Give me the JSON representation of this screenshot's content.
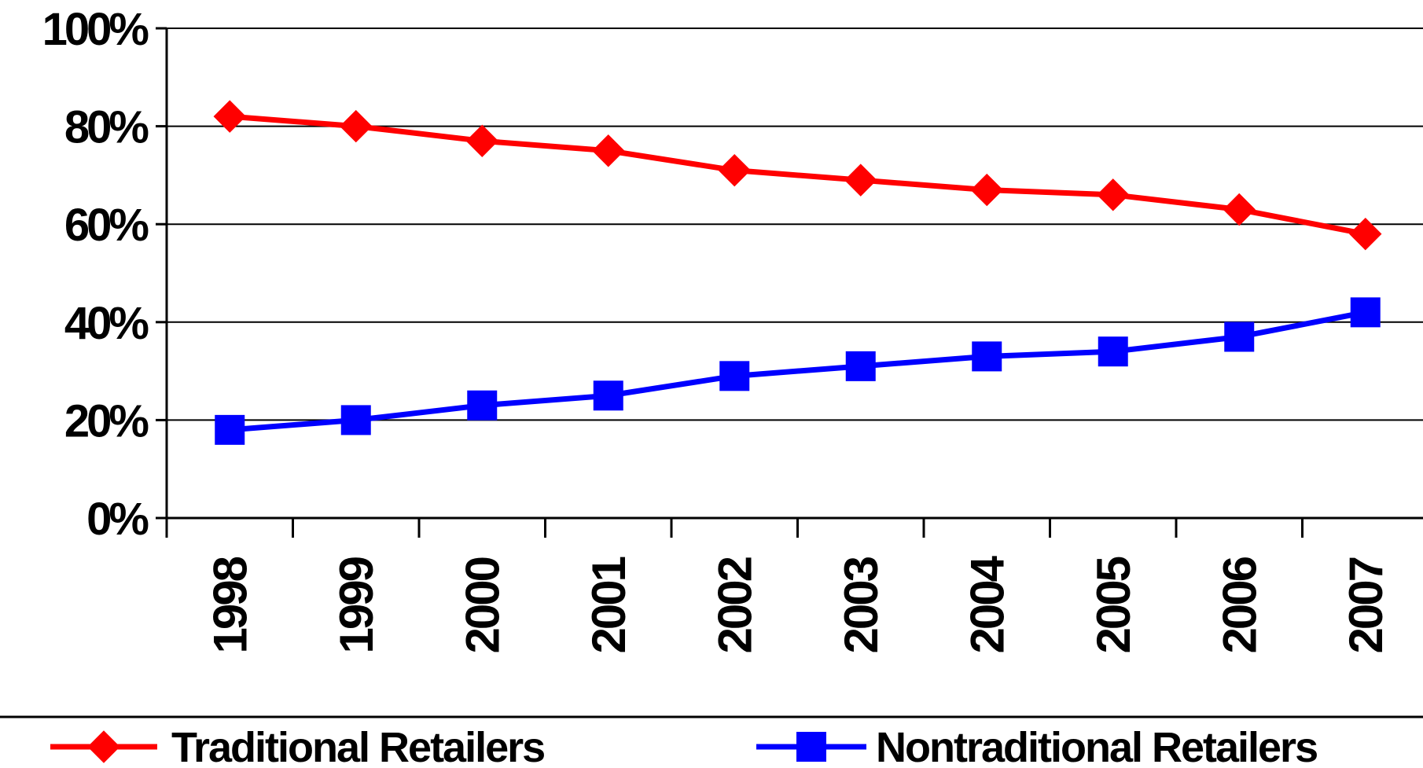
{
  "chart_data": {
    "type": "line",
    "title": "",
    "xlabel": "",
    "ylabel": "",
    "categories": [
      "1998",
      "1999",
      "2000",
      "2001",
      "2002",
      "2003",
      "2004",
      "2005",
      "2006",
      "2007"
    ],
    "ylim": [
      0,
      100
    ],
    "y_ticks": [
      "0%",
      "20%",
      "40%",
      "60%",
      "80%",
      "100%"
    ],
    "grid": true,
    "legend_position": "bottom",
    "series": [
      {
        "name": "Traditional Retailers",
        "values": [
          82,
          80,
          77,
          75,
          71,
          69,
          67,
          66,
          63,
          58
        ],
        "color": "#ff0000",
        "marker": "diamond"
      },
      {
        "name": "Nontraditional Retailers",
        "values": [
          18,
          20,
          23,
          25,
          29,
          31,
          33,
          34,
          37,
          42
        ],
        "color": "#0000ff",
        "marker": "square"
      }
    ]
  }
}
